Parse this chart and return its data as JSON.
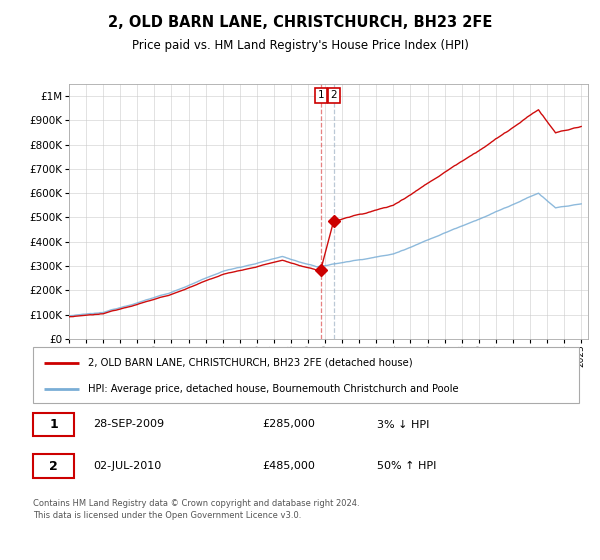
{
  "title": "2, OLD BARN LANE, CHRISTCHURCH, BH23 2FE",
  "subtitle": "Price paid vs. HM Land Registry's House Price Index (HPI)",
  "red_label": "2, OLD BARN LANE, CHRISTCHURCH, BH23 2FE (detached house)",
  "blue_label": "HPI: Average price, detached house, Bournemouth Christchurch and Poole",
  "transaction1_date": "28-SEP-2009",
  "transaction1_price": 285000,
  "transaction1_hpi": "3% ↓ HPI",
  "transaction2_date": "02-JUL-2010",
  "transaction2_price": 485000,
  "transaction2_hpi": "50% ↑ HPI",
  "footer": "Contains HM Land Registry data © Crown copyright and database right 2024.\nThis data is licensed under the Open Government Licence v3.0.",
  "red_color": "#cc0000",
  "blue_color": "#7aaed6",
  "grid_color": "#cccccc",
  "background_color": "#ffffff",
  "ylim_min": 0,
  "ylim_max": 1050000,
  "transaction1_x": 2009.75,
  "transaction2_x": 2010.5,
  "yticks": [
    0,
    100000,
    200000,
    300000,
    400000,
    500000,
    600000,
    700000,
    800000,
    900000,
    1000000
  ],
  "ytick_labels": [
    "£0",
    "£100K",
    "£200K",
    "£300K",
    "£400K",
    "£500K",
    "£600K",
    "£700K",
    "£800K",
    "£900K",
    "£1M"
  ],
  "start_year": 1995,
  "end_year": 2025
}
